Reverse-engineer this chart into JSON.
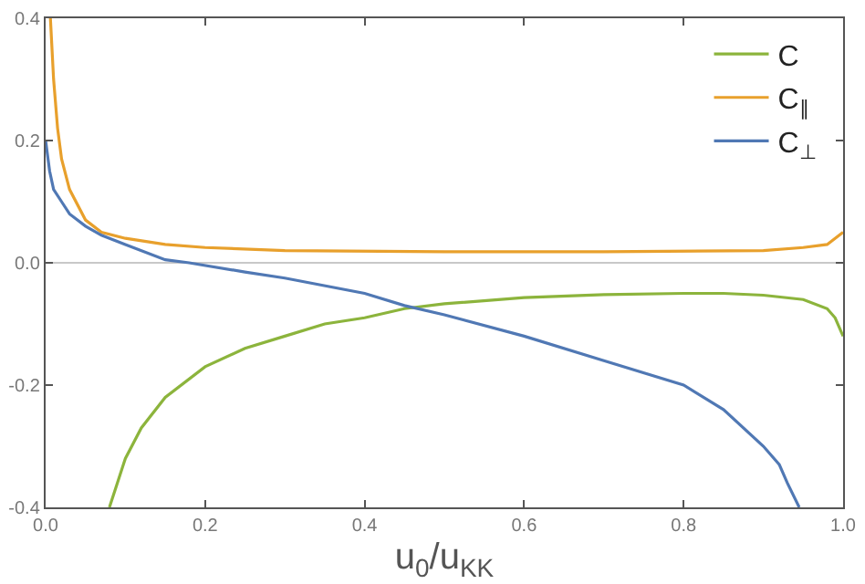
{
  "chart_data": {
    "type": "line",
    "xlabel": "u$_{0}$/u$_{KK}$",
    "xlim": [
      0,
      1
    ],
    "ylim": [
      -0.4,
      0.4
    ],
    "xticks": [
      {
        "value": 0,
        "label": "0.0"
      },
      0.2,
      0.4,
      0.6,
      0.8,
      {
        "value": 1,
        "label": "1.0"
      }
    ],
    "yticks": [
      -0.4,
      -0.2,
      {
        "value": 0,
        "label": "0.0"
      },
      0.2,
      0.4
    ],
    "legend": "top right",
    "grid": false,
    "marker": "none",
    "line_style": "solid",
    "ref_lines": [
      {
        "axis": "y",
        "value": 0,
        "color": "#c8c8c8"
      }
    ],
    "series": [
      {
        "name": "C",
        "color": "#8cb43c",
        "x": [
          0.08,
          0.09,
          0.1,
          0.12,
          0.15,
          0.2,
          0.25,
          0.3,
          0.35,
          0.4,
          0.45,
          0.5,
          0.6,
          0.7,
          0.8,
          0.85,
          0.9,
          0.95,
          0.98,
          0.99,
          1.0
        ],
        "values": [
          -0.4,
          -0.36,
          -0.32,
          -0.27,
          -0.22,
          -0.17,
          -0.14,
          -0.12,
          -0.1,
          -0.09,
          -0.075,
          -0.067,
          -0.057,
          -0.052,
          -0.05,
          -0.05,
          -0.053,
          -0.06,
          -0.075,
          -0.09,
          -0.12
        ]
      },
      {
        "name": "C$_{∥}$",
        "color": "#e8a02c",
        "x": [
          0.006,
          0.01,
          0.015,
          0.02,
          0.03,
          0.05,
          0.07,
          0.1,
          0.15,
          0.2,
          0.3,
          0.5,
          0.7,
          0.9,
          0.95,
          0.98,
          1.0
        ],
        "values": [
          0.4,
          0.3,
          0.22,
          0.17,
          0.12,
          0.07,
          0.05,
          0.04,
          0.03,
          0.025,
          0.02,
          0.018,
          0.018,
          0.02,
          0.025,
          0.03,
          0.05
        ]
      },
      {
        "name": "C$_{⊥}$",
        "color": "#5078b4",
        "x": [
          0.0,
          0.005,
          0.01,
          0.02,
          0.03,
          0.05,
          0.07,
          0.1,
          0.15,
          0.18,
          0.25,
          0.3,
          0.4,
          0.45,
          0.5,
          0.6,
          0.7,
          0.8,
          0.85,
          0.9,
          0.92,
          0.93,
          0.945
        ],
        "values": [
          0.2,
          0.15,
          0.12,
          0.1,
          0.08,
          0.06,
          0.045,
          0.03,
          0.005,
          0.0,
          -0.015,
          -0.025,
          -0.05,
          -0.07,
          -0.085,
          -0.12,
          -0.16,
          -0.2,
          -0.24,
          -0.3,
          -0.33,
          -0.36,
          -0.4
        ]
      }
    ]
  }
}
